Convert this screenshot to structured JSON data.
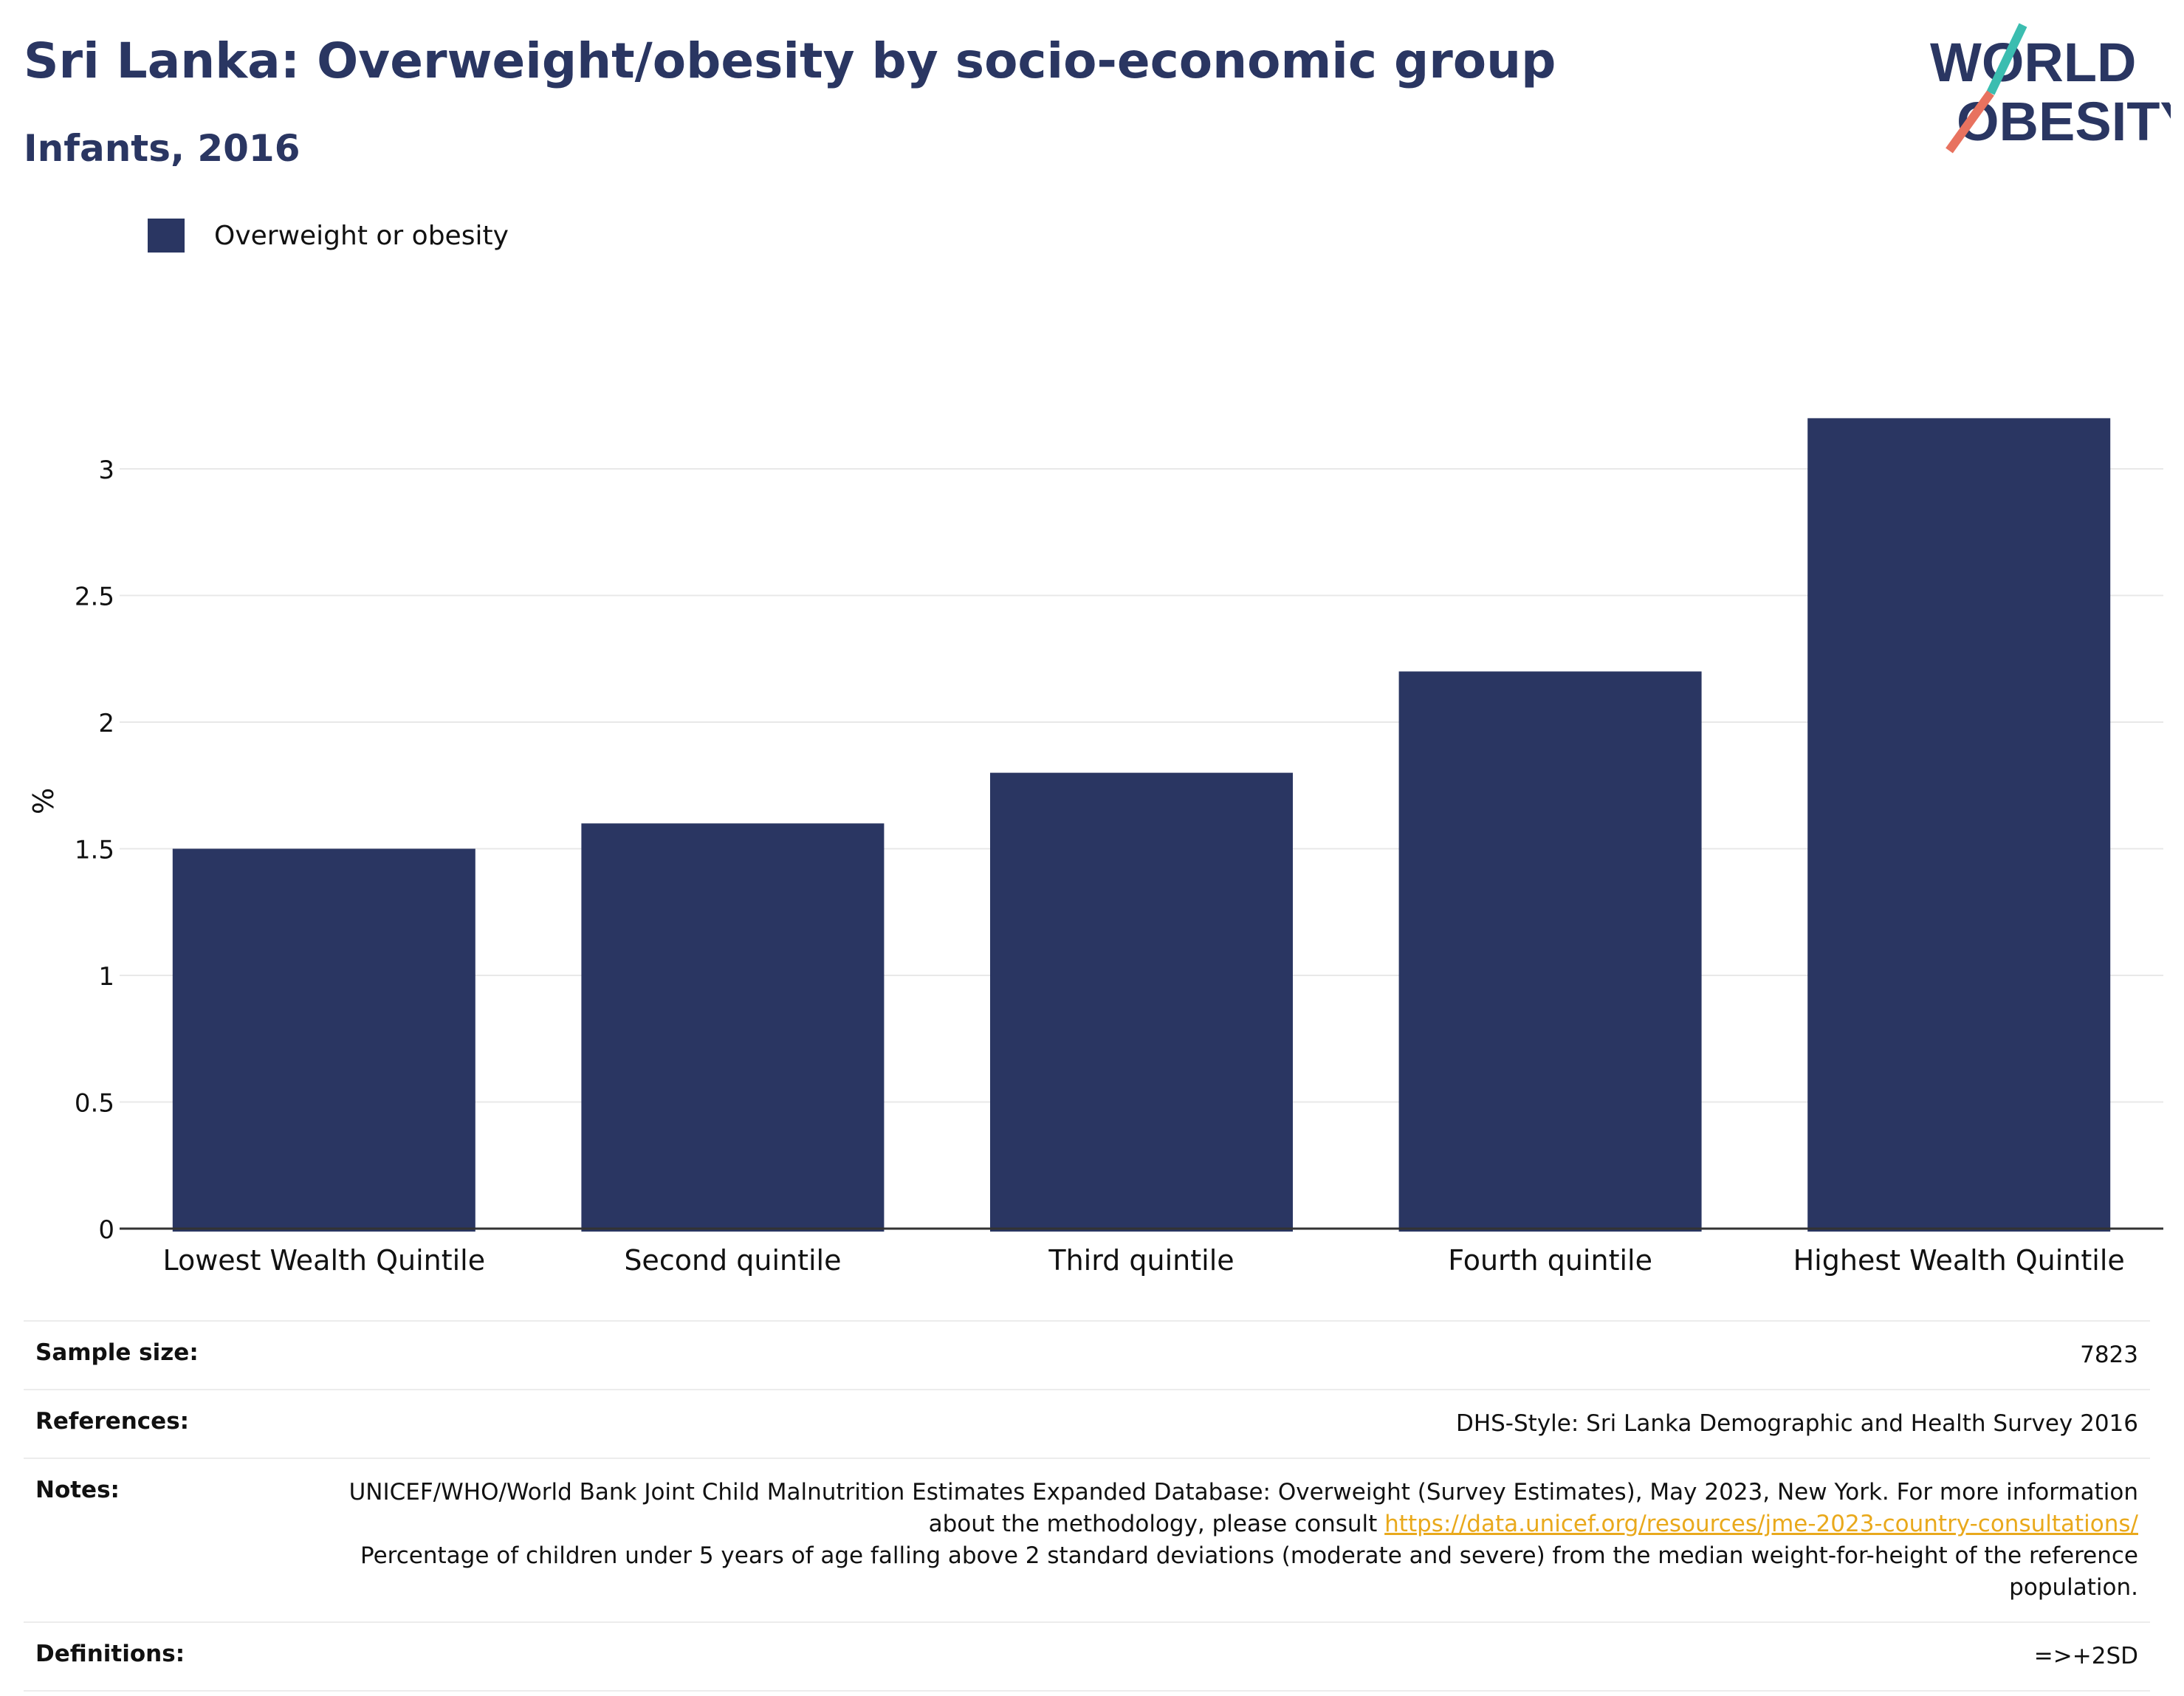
{
  "header": {
    "title": "Sri Lanka: Overweight/obesity by socio-economic group",
    "subtitle": "Infants, 2016"
  },
  "logo": {
    "line1": "WORLD",
    "line2": "OBESITY"
  },
  "colors": {
    "bar": "#2a3662",
    "title": "#2a3662",
    "logo_slash_top": "#3bbdb0",
    "logo_slash_bottom": "#e8725f"
  },
  "chart_data": {
    "type": "bar",
    "categories": [
      "Lowest Wealth Quintile",
      "Second quintile",
      "Third quintile",
      "Fourth quintile",
      "Highest Wealth Quintile"
    ],
    "series": [
      {
        "name": "Overweight or obesity",
        "values": [
          1.5,
          1.6,
          1.8,
          2.2,
          3.2
        ]
      }
    ],
    "ylabel": "%",
    "ylim": [
      0,
      3.5
    ],
    "yticks": [
      0,
      0.5,
      1,
      1.5,
      2,
      2.5,
      3
    ],
    "ytick_labels": [
      "0",
      "0.5",
      "1",
      "1.5",
      "2",
      "2.5",
      "3"
    ],
    "grid": true,
    "legend_position": "top-left"
  },
  "footer": {
    "sample_size_label": "Sample size:",
    "sample_size_value": "7823",
    "references_label": "References:",
    "references_value": "DHS-Style: Sri Lanka Demographic and Health Survey 2016",
    "notes_label": "Notes:",
    "notes_text1": "UNICEF/WHO/World Bank Joint Child Malnutrition Estimates Expanded Database: Overweight (Survey Estimates), May 2023, New York. For more information about the methodology, please consult ",
    "notes_link": "https://data.unicef.org/resources/jme-2023-country-consultations/",
    "notes_text2": "Percentage of children under 5 years of age falling above 2 standard deviations (moderate and severe) from the median weight-for-height of the reference population.",
    "definitions_label": "Definitions:",
    "definitions_value": "=>+2SD"
  }
}
